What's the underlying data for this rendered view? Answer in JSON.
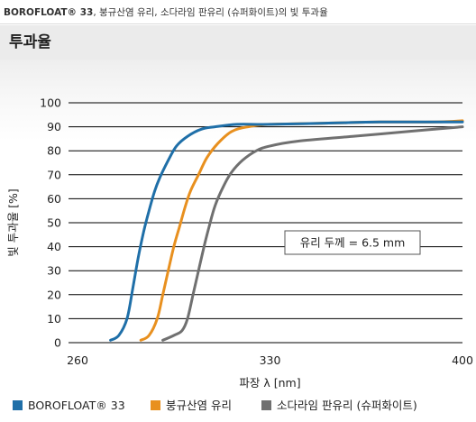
{
  "caption": {
    "brand": "BOROFLOAT® 33",
    "rest": ", 붕규산염 유리, 소다라임 판유리 (슈퍼화이트)의 빛 투과율"
  },
  "header": {
    "title": "투과율"
  },
  "chart_data": {
    "type": "line",
    "xlabel": "파장 λ [nm]",
    "ylabel": "빛 투과율 [%]",
    "xlim": [
      260,
      400
    ],
    "ylim": [
      0,
      100
    ],
    "xticks": [
      260,
      330,
      400
    ],
    "yticks": [
      0,
      10,
      20,
      30,
      40,
      50,
      60,
      70,
      80,
      90,
      100
    ],
    "grid": "horizontal",
    "legend_position": "bottom",
    "annotation": "유리 두께 = 6.5 mm",
    "series": [
      {
        "name": "BOROFLOAT® 33",
        "color": "#1f6fa8",
        "points": [
          [
            272,
            1
          ],
          [
            275,
            3
          ],
          [
            278,
            10
          ],
          [
            280,
            22
          ],
          [
            282,
            35
          ],
          [
            284,
            46
          ],
          [
            286,
            55
          ],
          [
            288,
            63
          ],
          [
            290,
            69
          ],
          [
            293,
            76
          ],
          [
            296,
            82
          ],
          [
            300,
            86
          ],
          [
            305,
            89
          ],
          [
            310,
            90
          ],
          [
            318,
            91
          ],
          [
            330,
            91
          ],
          [
            350,
            91.5
          ],
          [
            370,
            92
          ],
          [
            390,
            92
          ],
          [
            400,
            92
          ]
        ]
      },
      {
        "name": "붕규산염 유리",
        "color": "#e8901f",
        "points": [
          [
            283,
            1
          ],
          [
            286,
            3
          ],
          [
            289,
            10
          ],
          [
            291,
            20
          ],
          [
            293,
            30
          ],
          [
            295,
            40
          ],
          [
            297,
            48
          ],
          [
            299,
            56
          ],
          [
            301,
            63
          ],
          [
            304,
            70
          ],
          [
            307,
            77
          ],
          [
            311,
            83
          ],
          [
            316,
            88
          ],
          [
            322,
            90
          ],
          [
            330,
            91
          ],
          [
            350,
            91.5
          ],
          [
            370,
            92
          ],
          [
            390,
            92
          ],
          [
            400,
            92.5
          ]
        ]
      },
      {
        "name": "소다라임 판유리 (슈퍼화이트)",
        "color": "#707070",
        "points": [
          [
            291,
            1
          ],
          [
            295,
            3
          ],
          [
            298,
            5
          ],
          [
            300,
            10
          ],
          [
            302,
            20
          ],
          [
            304,
            30
          ],
          [
            306,
            40
          ],
          [
            308,
            49
          ],
          [
            310,
            57
          ],
          [
            313,
            65
          ],
          [
            316,
            71
          ],
          [
            320,
            76
          ],
          [
            325,
            80
          ],
          [
            330,
            82
          ],
          [
            340,
            84
          ],
          [
            360,
            86
          ],
          [
            380,
            88
          ],
          [
            400,
            90
          ]
        ]
      }
    ]
  }
}
